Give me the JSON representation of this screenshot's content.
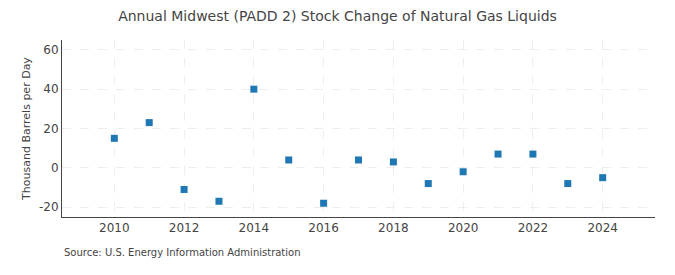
{
  "chart_data": {
    "type": "scatter",
    "title": "Annual Midwest (PADD 2) Stock Change of Natural Gas Liquids",
    "ylabel": "Thousand Barrels per Day",
    "annotations": [
      "Source: U.S. Energy Information Administration"
    ],
    "x": [
      2010,
      2011,
      2012,
      2013,
      2014,
      2015,
      2016,
      2017,
      2018,
      2019,
      2020,
      2021,
      2022,
      2023,
      2024
    ],
    "values": [
      15,
      23,
      -11,
      -17,
      40,
      4,
      -18,
      4,
      3,
      -8,
      -2,
      7,
      7,
      -8,
      -5
    ],
    "marker": "square",
    "xlim": [
      2008.5,
      2025.5
    ],
    "xticks": [
      2010,
      2012,
      2014,
      2016,
      2018,
      2020,
      2022,
      2024
    ],
    "ylim": [
      -25,
      65
    ],
    "yticks": [
      -20,
      0,
      20,
      40,
      60
    ],
    "grid": true
  }
}
